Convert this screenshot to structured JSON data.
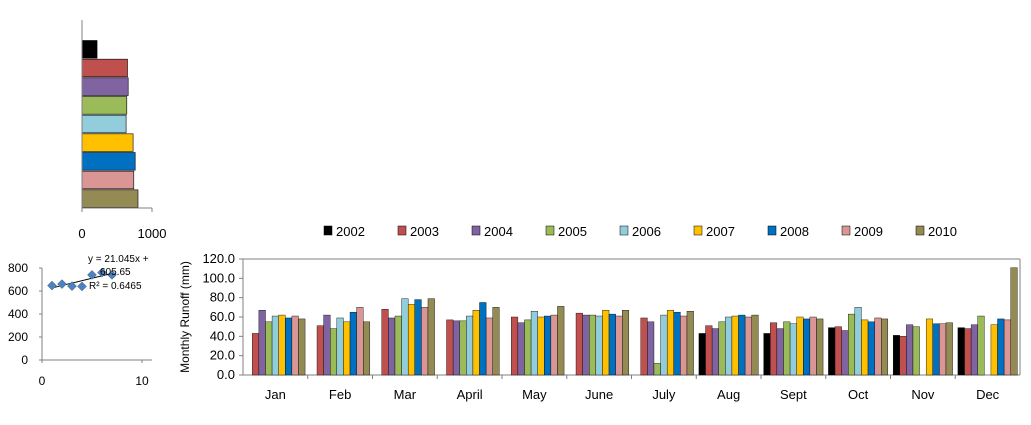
{
  "chart_data": [
    {
      "type": "bar",
      "orientation": "horizontal",
      "categories": [
        "2002",
        "2003",
        "2004",
        "2005",
        "2006",
        "2007",
        "2008",
        "2009",
        "2010"
      ],
      "values": [
        215,
        650,
        660,
        640,
        630,
        730,
        760,
        740,
        800
      ],
      "xlim": [
        0,
        1000
      ],
      "xticks": [
        "0",
        "1000"
      ],
      "colors": [
        "#000000",
        "#c0504d",
        "#8064a2",
        "#9bbb59",
        "#92cddc",
        "#ffc000",
        "#0070c0",
        "#d99694",
        "#948a54"
      ],
      "grid": false,
      "legend": "none"
    },
    {
      "type": "scatter",
      "points": [
        {
          "x": 1,
          "y": 647
        },
        {
          "x": 2,
          "y": 660
        },
        {
          "x": 3,
          "y": 642
        },
        {
          "x": 4,
          "y": 640
        },
        {
          "x": 5,
          "y": 740
        },
        {
          "x": 6,
          "y": 760
        },
        {
          "x": 7,
          "y": 740
        }
      ],
      "trendline": {
        "slope": 21.045,
        "intercept": 605.65,
        "x_range": [
          1,
          7
        ]
      },
      "annotations": [
        "y = 21.045x +",
        "605.65",
        "R² = 0.6465"
      ],
      "xlim": [
        0,
        10
      ],
      "ylim": [
        0,
        800
      ],
      "xticks": [
        "0",
        "10"
      ],
      "yticks": [
        "0",
        "200",
        "400",
        "600",
        "800"
      ],
      "marker_color": "#4f81bd",
      "grid": false
    },
    {
      "type": "bar",
      "categories": [
        "Jan",
        "Feb",
        "Mar",
        "April",
        "May",
        "June",
        "July",
        "Aug",
        "Sept",
        "Oct",
        "Nov",
        "Dec"
      ],
      "series": [
        {
          "name": "2002",
          "color": "#000000",
          "values": [
            0,
            0,
            0,
            0,
            0,
            0,
            0,
            43,
            43,
            49,
            41,
            49
          ]
        },
        {
          "name": "2003",
          "color": "#c0504d",
          "values": [
            43,
            51,
            68,
            57,
            60,
            64,
            59,
            51,
            54,
            50,
            40,
            48
          ]
        },
        {
          "name": "2004",
          "color": "#8064a2",
          "values": [
            67,
            62,
            59,
            56,
            54,
            62,
            55,
            48,
            48,
            46,
            52,
            52
          ]
        },
        {
          "name": "2005",
          "color": "#9bbb59",
          "values": [
            55,
            48,
            61,
            56,
            57,
            62,
            12,
            55,
            55,
            63,
            50,
            61
          ]
        },
        {
          "name": "2006",
          "color": "#92cddc",
          "values": [
            61,
            59,
            79,
            61,
            66,
            61,
            62,
            60,
            53,
            70,
            0,
            0
          ]
        },
        {
          "name": "2007",
          "color": "#ffc000",
          "values": [
            62,
            55,
            73,
            67,
            60,
            67,
            67,
            61,
            60,
            57,
            58,
            52
          ]
        },
        {
          "name": "2008",
          "color": "#0070c0",
          "values": [
            59,
            65,
            78,
            75,
            61,
            63,
            65,
            62,
            58,
            55,
            53,
            58
          ]
        },
        {
          "name": "2009",
          "color": "#d99694",
          "values": [
            61,
            70,
            70,
            59,
            62,
            61,
            61,
            60,
            60,
            59,
            53,
            57
          ]
        },
        {
          "name": "2010",
          "color": "#948a54",
          "values": [
            58,
            55,
            79,
            70,
            71,
            67,
            66,
            62,
            58,
            58,
            54,
            111
          ]
        }
      ],
      "ylabel": "Monthly  Runoff (mm)",
      "ylim": [
        0,
        120
      ],
      "yticks": [
        "0.0",
        "20.0",
        "40.0",
        "60.0",
        "80.0",
        "100.0",
        "120.0"
      ],
      "grid": false,
      "legend": "top"
    }
  ]
}
